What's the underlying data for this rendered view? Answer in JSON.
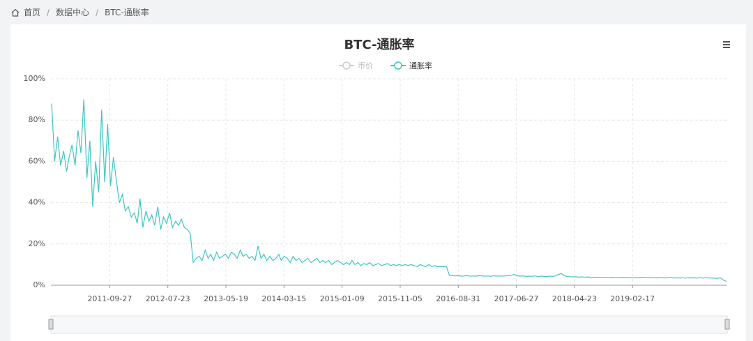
{
  "breadcrumb": [
    "首页",
    "数据中心",
    "BTC-通胀率"
  ],
  "chart_data": {
    "type": "line",
    "title": "BTC-通胀率",
    "legend": [
      {
        "name": "币价",
        "active": false
      },
      {
        "name": "通胀率",
        "active": true
      }
    ],
    "color": "#3cc6c2",
    "xlim": [
      "2010-11-27",
      "2020-06-20"
    ],
    "xticks": [
      "2011-09-27",
      "2012-07-23",
      "2013-05-19",
      "2014-03-15",
      "2015-01-09",
      "2015-11-05",
      "2016-08-31",
      "2017-06-27",
      "2018-04-23",
      "2019-02-17"
    ],
    "ylim": [
      0,
      100
    ],
    "yticks": [
      {
        "value": 0,
        "label": "0%"
      },
      {
        "value": 20,
        "label": "20%"
      },
      {
        "value": 40,
        "label": "40%"
      },
      {
        "value": 60,
        "label": "60%"
      },
      {
        "value": 80,
        "label": "80%"
      },
      {
        "value": 100,
        "label": "100%"
      }
    ],
    "grid": true,
    "x": [
      "2010-12-01",
      "2010-12-16",
      "2011-01-01",
      "2011-01-16",
      "2011-02-01",
      "2011-02-16",
      "2011-03-01",
      "2011-03-16",
      "2011-04-01",
      "2011-04-16",
      "2011-05-01",
      "2011-05-16",
      "2011-06-01",
      "2011-06-16",
      "2011-07-01",
      "2011-07-16",
      "2011-08-01",
      "2011-08-16",
      "2011-09-01",
      "2011-09-16",
      "2011-10-01",
      "2011-10-16",
      "2011-11-01",
      "2011-11-16",
      "2011-12-01",
      "2011-12-16",
      "2012-01-01",
      "2012-01-16",
      "2012-02-01",
      "2012-02-16",
      "2012-03-01",
      "2012-03-16",
      "2012-04-01",
      "2012-04-16",
      "2012-05-01",
      "2012-05-16",
      "2012-06-01",
      "2012-06-16",
      "2012-07-01",
      "2012-07-16",
      "2012-08-01",
      "2012-08-16",
      "2012-09-01",
      "2012-09-16",
      "2012-10-01",
      "2012-10-16",
      "2012-11-01",
      "2012-11-16",
      "2012-12-01",
      "2012-12-16",
      "2013-01-01",
      "2013-01-16",
      "2013-02-01",
      "2013-02-16",
      "2013-03-01",
      "2013-03-16",
      "2013-04-01",
      "2013-04-16",
      "2013-05-01",
      "2013-05-16",
      "2013-06-01",
      "2013-06-16",
      "2013-07-01",
      "2013-07-16",
      "2013-08-01",
      "2013-08-16",
      "2013-09-01",
      "2013-09-16",
      "2013-10-01",
      "2013-10-16",
      "2013-11-01",
      "2013-11-16",
      "2013-12-01",
      "2013-12-16",
      "2014-01-01",
      "2014-01-16",
      "2014-02-01",
      "2014-02-16",
      "2014-03-01",
      "2014-03-16",
      "2014-04-01",
      "2014-04-16",
      "2014-05-01",
      "2014-05-16",
      "2014-06-01",
      "2014-06-16",
      "2014-07-01",
      "2014-07-16",
      "2014-08-01",
      "2014-08-16",
      "2014-09-01",
      "2014-09-16",
      "2014-10-01",
      "2014-10-16",
      "2014-11-01",
      "2014-11-16",
      "2014-12-01",
      "2014-12-16",
      "2015-01-01",
      "2015-01-16",
      "2015-02-01",
      "2015-02-16",
      "2015-03-01",
      "2015-03-16",
      "2015-04-01",
      "2015-04-16",
      "2015-05-01",
      "2015-05-16",
      "2015-06-01",
      "2015-06-16",
      "2015-07-01",
      "2015-07-16",
      "2015-08-01",
      "2015-08-16",
      "2015-09-01",
      "2015-09-16",
      "2015-10-01",
      "2015-10-16",
      "2015-11-01",
      "2015-11-16",
      "2015-12-01",
      "2015-12-16",
      "2016-01-01",
      "2016-01-16",
      "2016-02-01",
      "2016-02-16",
      "2016-03-01",
      "2016-03-16",
      "2016-04-01",
      "2016-04-16",
      "2016-05-01",
      "2016-05-16",
      "2016-06-01",
      "2016-06-16",
      "2016-07-01",
      "2016-07-16",
      "2016-08-01",
      "2016-08-16",
      "2016-09-01",
      "2016-09-16",
      "2016-10-01",
      "2016-10-16",
      "2016-11-01",
      "2016-11-16",
      "2016-12-01",
      "2016-12-16",
      "2017-01-01",
      "2017-01-16",
      "2017-02-01",
      "2017-02-16",
      "2017-03-01",
      "2017-03-16",
      "2017-04-01",
      "2017-04-16",
      "2017-05-01",
      "2017-05-16",
      "2017-06-01",
      "2017-06-16",
      "2017-07-01",
      "2017-07-16",
      "2017-08-01",
      "2017-08-16",
      "2017-09-01",
      "2017-09-16",
      "2017-10-01",
      "2017-10-16",
      "2017-11-01",
      "2017-11-16",
      "2017-12-01",
      "2017-12-16",
      "2018-01-01",
      "2018-01-16",
      "2018-02-01",
      "2018-02-16",
      "2018-03-01",
      "2018-03-16",
      "2018-04-01",
      "2018-04-16",
      "2018-05-01",
      "2018-05-16",
      "2018-06-01",
      "2018-06-16",
      "2018-07-01",
      "2018-07-16",
      "2018-08-01",
      "2018-08-16",
      "2018-09-01",
      "2018-09-16",
      "2018-10-01",
      "2018-10-16",
      "2018-11-01",
      "2018-11-16",
      "2018-12-01",
      "2018-12-16",
      "2019-01-01",
      "2019-01-16",
      "2019-02-01",
      "2019-02-16",
      "2019-03-01",
      "2019-03-16",
      "2019-04-01",
      "2019-04-16",
      "2019-05-01",
      "2019-05-16",
      "2019-06-01",
      "2019-06-16",
      "2019-07-01",
      "2019-07-16",
      "2019-08-01",
      "2019-08-16",
      "2019-09-01",
      "2019-09-16",
      "2019-10-01",
      "2019-10-16",
      "2019-11-01",
      "2019-11-16",
      "2019-12-01",
      "2019-12-16",
      "2020-01-01",
      "2020-01-16",
      "2020-02-01",
      "2020-02-16",
      "2020-03-01",
      "2020-03-16",
      "2020-04-01",
      "2020-04-16",
      "2020-05-01",
      "2020-05-16",
      "2020-06-01",
      "2020-06-16"
    ],
    "values": [
      88,
      60,
      72,
      58,
      65,
      55,
      62,
      68,
      58,
      75,
      64,
      90,
      52,
      70,
      38,
      60,
      45,
      85,
      50,
      78,
      48,
      62,
      50,
      40,
      44,
      36,
      38,
      33,
      35,
      30,
      42,
      28,
      36,
      31,
      34,
      29,
      38,
      27,
      33,
      30,
      35,
      28,
      31,
      29,
      32,
      28,
      27,
      25,
      11,
      13,
      14,
      12,
      17,
      13,
      15,
      12,
      16,
      13,
      14,
      15,
      13,
      16,
      15,
      13,
      17,
      14,
      15,
      13,
      14,
      12,
      19,
      13,
      15,
      12,
      14,
      12,
      13,
      15,
      12,
      14,
      13,
      11,
      14,
      12,
      13,
      11,
      12,
      13,
      11,
      12,
      13,
      11,
      12,
      11,
      12,
      10,
      11,
      12,
      11,
      10,
      11,
      10,
      12,
      10,
      11,
      9.5,
      10.5,
      10,
      11,
      9.5,
      10,
      10.5,
      9.5,
      10,
      10.5,
      9.5,
      10,
      9.5,
      10,
      9.5,
      10,
      9.5,
      10,
      9.5,
      9,
      10,
      9.5,
      9,
      10,
      9,
      9.5,
      9,
      9,
      9,
      9,
      4.8,
      4.6,
      4.5,
      4.6,
      4.4,
      4.5,
      4.6,
      4.4,
      4.5,
      4.4,
      4.6,
      4.5,
      4.4,
      4.5,
      4.3,
      4.6,
      4.4,
      4.5,
      4.4,
      4.5,
      4.6,
      4.8,
      5.2,
      4.6,
      4.4,
      4.5,
      4.3,
      4.4,
      4.3,
      4.5,
      4.2,
      4.4,
      4.3,
      4.2,
      4.4,
      4.3,
      4.5,
      5.3,
      5.6,
      4.6,
      4.2,
      4.1,
      4.0,
      4.1,
      3.9,
      4.0,
      3.9,
      4.0,
      3.8,
      3.9,
      3.8,
      3.9,
      3.7,
      3.8,
      3.7,
      3.8,
      3.6,
      3.7,
      3.6,
      3.8,
      3.6,
      3.7,
      3.5,
      3.7,
      3.6,
      3.8,
      3.9,
      3.7,
      3.6,
      3.7,
      3.5,
      3.6,
      3.7,
      3.5,
      3.6,
      3.7,
      3.5,
      3.6,
      3.5,
      3.6,
      3.4,
      3.6,
      3.5,
      3.6,
      3.5,
      3.6,
      3.4,
      3.7,
      3.5,
      3.5,
      3.4,
      3.3,
      3.6,
      2.5,
      1.8
    ]
  }
}
